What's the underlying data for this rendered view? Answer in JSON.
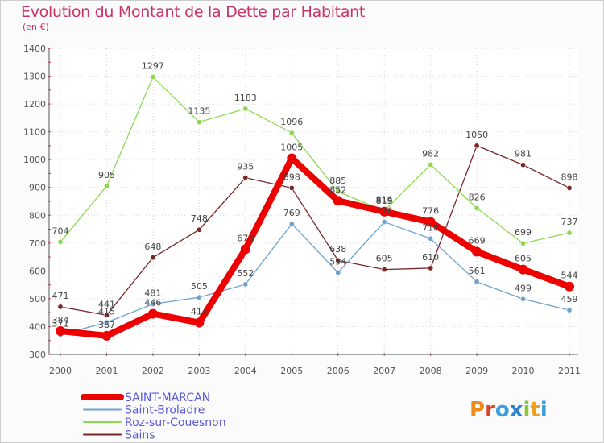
{
  "chart_data": {
    "type": "line",
    "title": "Evolution du Montant de la Dette par Habitant",
    "subtitle": "(en €)",
    "categories": [
      "2000",
      "2001",
      "2002",
      "2003",
      "2004",
      "2005",
      "2006",
      "2007",
      "2008",
      "2009",
      "2010",
      "2011"
    ],
    "ylim": [
      300,
      1400
    ],
    "yticks": [
      300,
      400,
      500,
      600,
      700,
      800,
      900,
      1000,
      1100,
      1200,
      1300,
      1400
    ],
    "grid": true,
    "legend_position": "bottom-left",
    "series": [
      {
        "name": "SAINT-MARCAN",
        "color": "#ee0000",
        "values": [
          384,
          367,
          446,
          414,
          678,
          1005,
          852,
          813,
          776,
          669,
          605,
          544
        ]
      },
      {
        "name": "Saint-Broladre",
        "color": "#6fa2cd",
        "values": [
          371,
          415,
          481,
          505,
          552,
          769,
          594,
          776,
          716,
          561,
          499,
          459
        ]
      },
      {
        "name": "Roz-sur-Couesnon",
        "color": "#8cd94f",
        "values": [
          704,
          905,
          1297,
          1135,
          1183,
          1096,
          885,
          816,
          982,
          826,
          699,
          737
        ]
      },
      {
        "name": "Sains",
        "color": "#7a2727",
        "values": [
          471,
          441,
          648,
          748,
          935,
          898,
          638,
          605,
          610,
          1050,
          981,
          898
        ]
      }
    ]
  },
  "brand": {
    "name": "Proxiti"
  }
}
